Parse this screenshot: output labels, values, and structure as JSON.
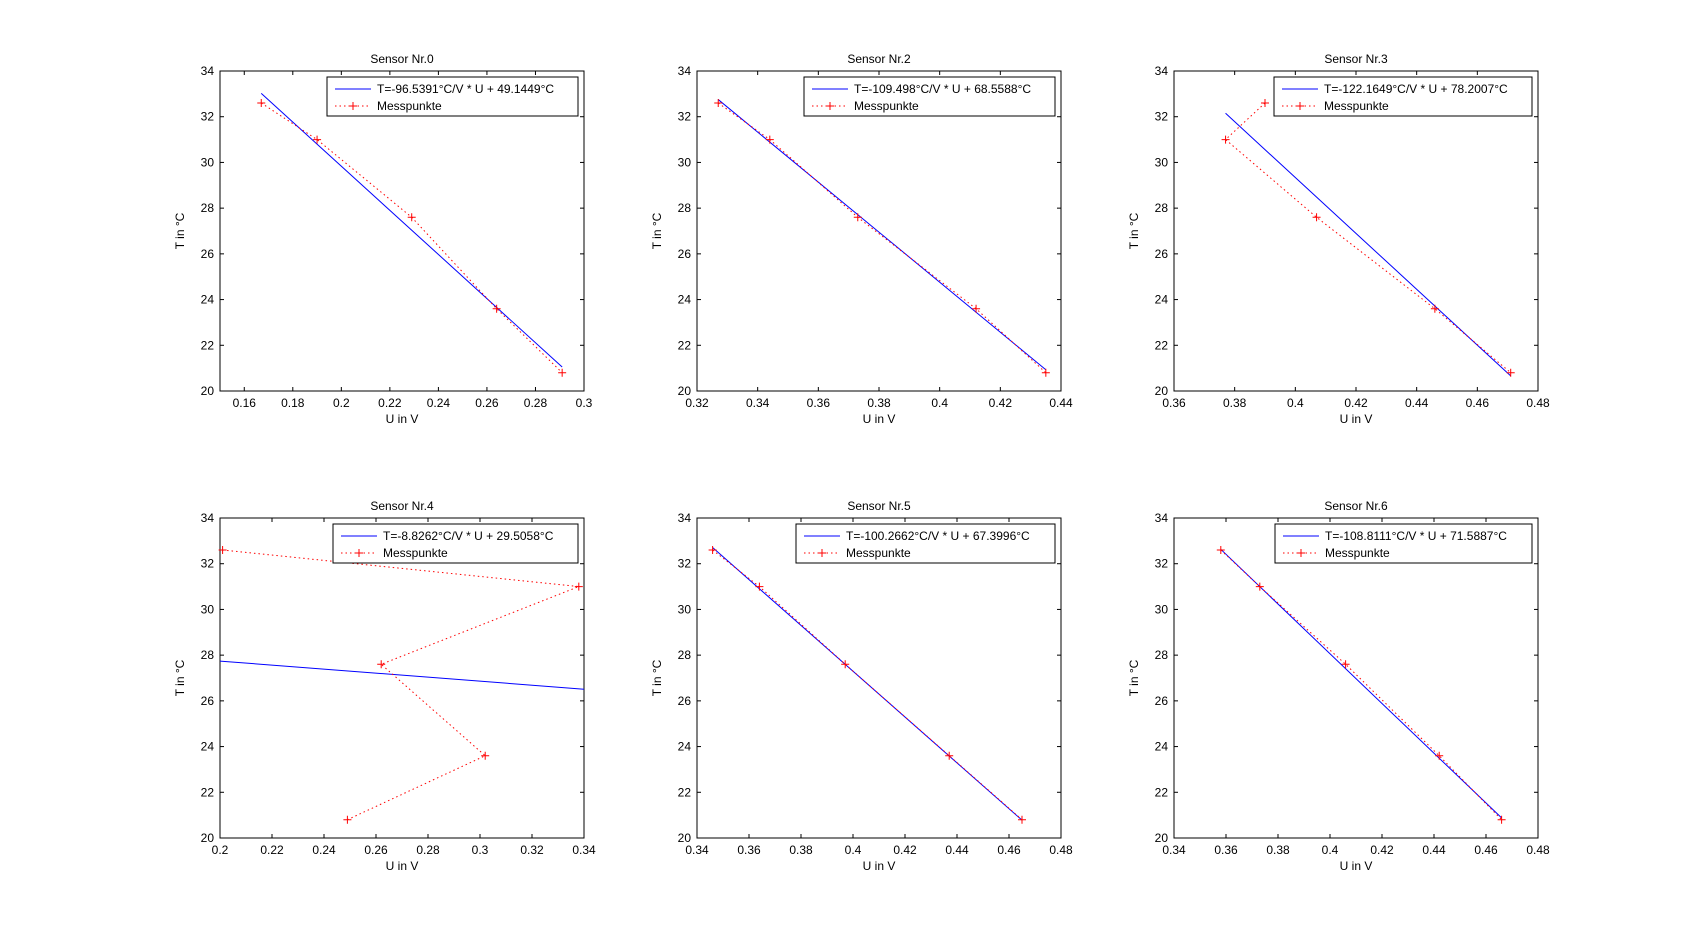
{
  "chart_data": [
    {
      "type": "line",
      "title": "Sensor Nr.0",
      "xlabel": "U in V",
      "ylabel": "T in °C",
      "xlim": [
        0.15,
        0.3
      ],
      "ylim": [
        20,
        34
      ],
      "xticks": [
        "0.16",
        "0.18",
        "0.2",
        "0.22",
        "0.24",
        "0.26",
        "0.28",
        "0.3"
      ],
      "yticks": [
        "20",
        "22",
        "24",
        "26",
        "28",
        "30",
        "32",
        "34"
      ],
      "legend_placement": "top-right",
      "series": [
        {
          "name": "T=-96.5391°C/V * U + 49.1449°C",
          "style": "solid",
          "color": "#0000ff",
          "x": [
            0.167,
            0.291
          ],
          "y": [
            33.02,
            21.05
          ]
        },
        {
          "name": "Messpunkte",
          "style": "dotted-plus",
          "color": "#ff0000",
          "x": [
            0.167,
            0.19,
            0.229,
            0.264,
            0.291
          ],
          "y": [
            32.6,
            31.0,
            27.6,
            23.6,
            20.8
          ]
        }
      ]
    },
    {
      "type": "line",
      "title": "Sensor Nr.2",
      "xlabel": "U in V",
      "ylabel": "T in °C",
      "xlim": [
        0.32,
        0.44
      ],
      "ylim": [
        20,
        34
      ],
      "xticks": [
        "0.32",
        "0.34",
        "0.36",
        "0.38",
        "0.4",
        "0.42",
        "0.44"
      ],
      "yticks": [
        "20",
        "22",
        "24",
        "26",
        "28",
        "30",
        "32",
        "34"
      ],
      "legend_placement": "top-right",
      "series": [
        {
          "name": "T=-109.498°C/V * U + 68.5588°C",
          "style": "solid",
          "color": "#0000ff",
          "x": [
            0.327,
            0.435
          ],
          "y": [
            32.75,
            20.93
          ]
        },
        {
          "name": "Messpunkte",
          "style": "dotted-plus",
          "color": "#ff0000",
          "x": [
            0.327,
            0.344,
            0.373,
            0.412,
            0.435
          ],
          "y": [
            32.6,
            31.0,
            27.6,
            23.6,
            20.8
          ]
        }
      ]
    },
    {
      "type": "line",
      "title": "Sensor Nr.3",
      "xlabel": "U in V",
      "ylabel": "T in °C",
      "xlim": [
        0.36,
        0.48
      ],
      "ylim": [
        20,
        34
      ],
      "xticks": [
        "0.36",
        "0.38",
        "0.4",
        "0.42",
        "0.44",
        "0.46",
        "0.48"
      ],
      "yticks": [
        "20",
        "22",
        "24",
        "26",
        "28",
        "30",
        "32",
        "34"
      ],
      "legend_placement": "top-right",
      "series": [
        {
          "name": "T=-122.1649°C/V * U + 78.2007°C",
          "style": "solid",
          "color": "#0000ff",
          "x": [
            0.377,
            0.471
          ],
          "y": [
            32.15,
            20.66
          ]
        },
        {
          "name": "Messpunkte",
          "style": "dotted-plus",
          "color": "#ff0000",
          "x": [
            0.39,
            0.377,
            0.407,
            0.446,
            0.471
          ],
          "y": [
            32.6,
            31.0,
            27.6,
            23.6,
            20.8
          ]
        }
      ]
    },
    {
      "type": "line",
      "title": "Sensor Nr.4",
      "xlabel": "U in V",
      "ylabel": "T in °C",
      "xlim": [
        0.2,
        0.34
      ],
      "ylim": [
        20,
        34
      ],
      "xticks": [
        "0.2",
        "0.22",
        "0.24",
        "0.26",
        "0.28",
        "0.3",
        "0.32",
        "0.34"
      ],
      "yticks": [
        "20",
        "22",
        "24",
        "26",
        "28",
        "30",
        "32",
        "34"
      ],
      "legend_placement": "top-right",
      "series": [
        {
          "name": "T=-8.8262°C/V * U + 29.5058°C",
          "style": "solid",
          "color": "#0000ff",
          "x": [
            0.2,
            0.34
          ],
          "y": [
            27.74,
            26.51
          ]
        },
        {
          "name": "Messpunkte",
          "style": "dotted-plus",
          "color": "#ff0000",
          "x": [
            0.201,
            0.338,
            0.262,
            0.302,
            0.249
          ],
          "y": [
            32.6,
            31.0,
            27.6,
            23.6,
            20.8
          ]
        }
      ]
    },
    {
      "type": "line",
      "title": "Sensor Nr.5",
      "xlabel": "U in V",
      "ylabel": "T in °C",
      "xlim": [
        0.34,
        0.48
      ],
      "ylim": [
        20,
        34
      ],
      "xticks": [
        "0.34",
        "0.36",
        "0.38",
        "0.4",
        "0.42",
        "0.44",
        "0.46",
        "0.48"
      ],
      "yticks": [
        "20",
        "22",
        "24",
        "26",
        "28",
        "30",
        "32",
        "34"
      ],
      "legend_placement": "top-right",
      "series": [
        {
          "name": "T=-100.2662°C/V * U + 67.3996°C",
          "style": "solid",
          "color": "#0000ff",
          "x": [
            0.346,
            0.465
          ],
          "y": [
            32.71,
            20.78
          ]
        },
        {
          "name": "Messpunkte",
          "style": "dotted-plus",
          "color": "#ff0000",
          "x": [
            0.346,
            0.364,
            0.397,
            0.437,
            0.465
          ],
          "y": [
            32.6,
            31.0,
            27.6,
            23.6,
            20.8
          ]
        }
      ]
    },
    {
      "type": "line",
      "title": "Sensor Nr.6",
      "xlabel": "U in V",
      "ylabel": "T in °C",
      "xlim": [
        0.34,
        0.48
      ],
      "ylim": [
        20,
        34
      ],
      "xticks": [
        "0.34",
        "0.36",
        "0.38",
        "0.4",
        "0.42",
        "0.44",
        "0.46",
        "0.48"
      ],
      "yticks": [
        "20",
        "22",
        "24",
        "26",
        "28",
        "30",
        "32",
        "34"
      ],
      "legend_placement": "top-right",
      "series": [
        {
          "name": "T=-108.8111°C/V * U + 71.5887°C",
          "style": "solid",
          "color": "#0000ff",
          "x": [
            0.358,
            0.466
          ],
          "y": [
            32.63,
            20.88
          ]
        },
        {
          "name": "Messpunkte",
          "style": "dotted-plus",
          "color": "#ff0000",
          "x": [
            0.358,
            0.373,
            0.406,
            0.442,
            0.466
          ],
          "y": [
            32.6,
            31.0,
            27.6,
            23.6,
            20.8
          ]
        }
      ]
    }
  ]
}
